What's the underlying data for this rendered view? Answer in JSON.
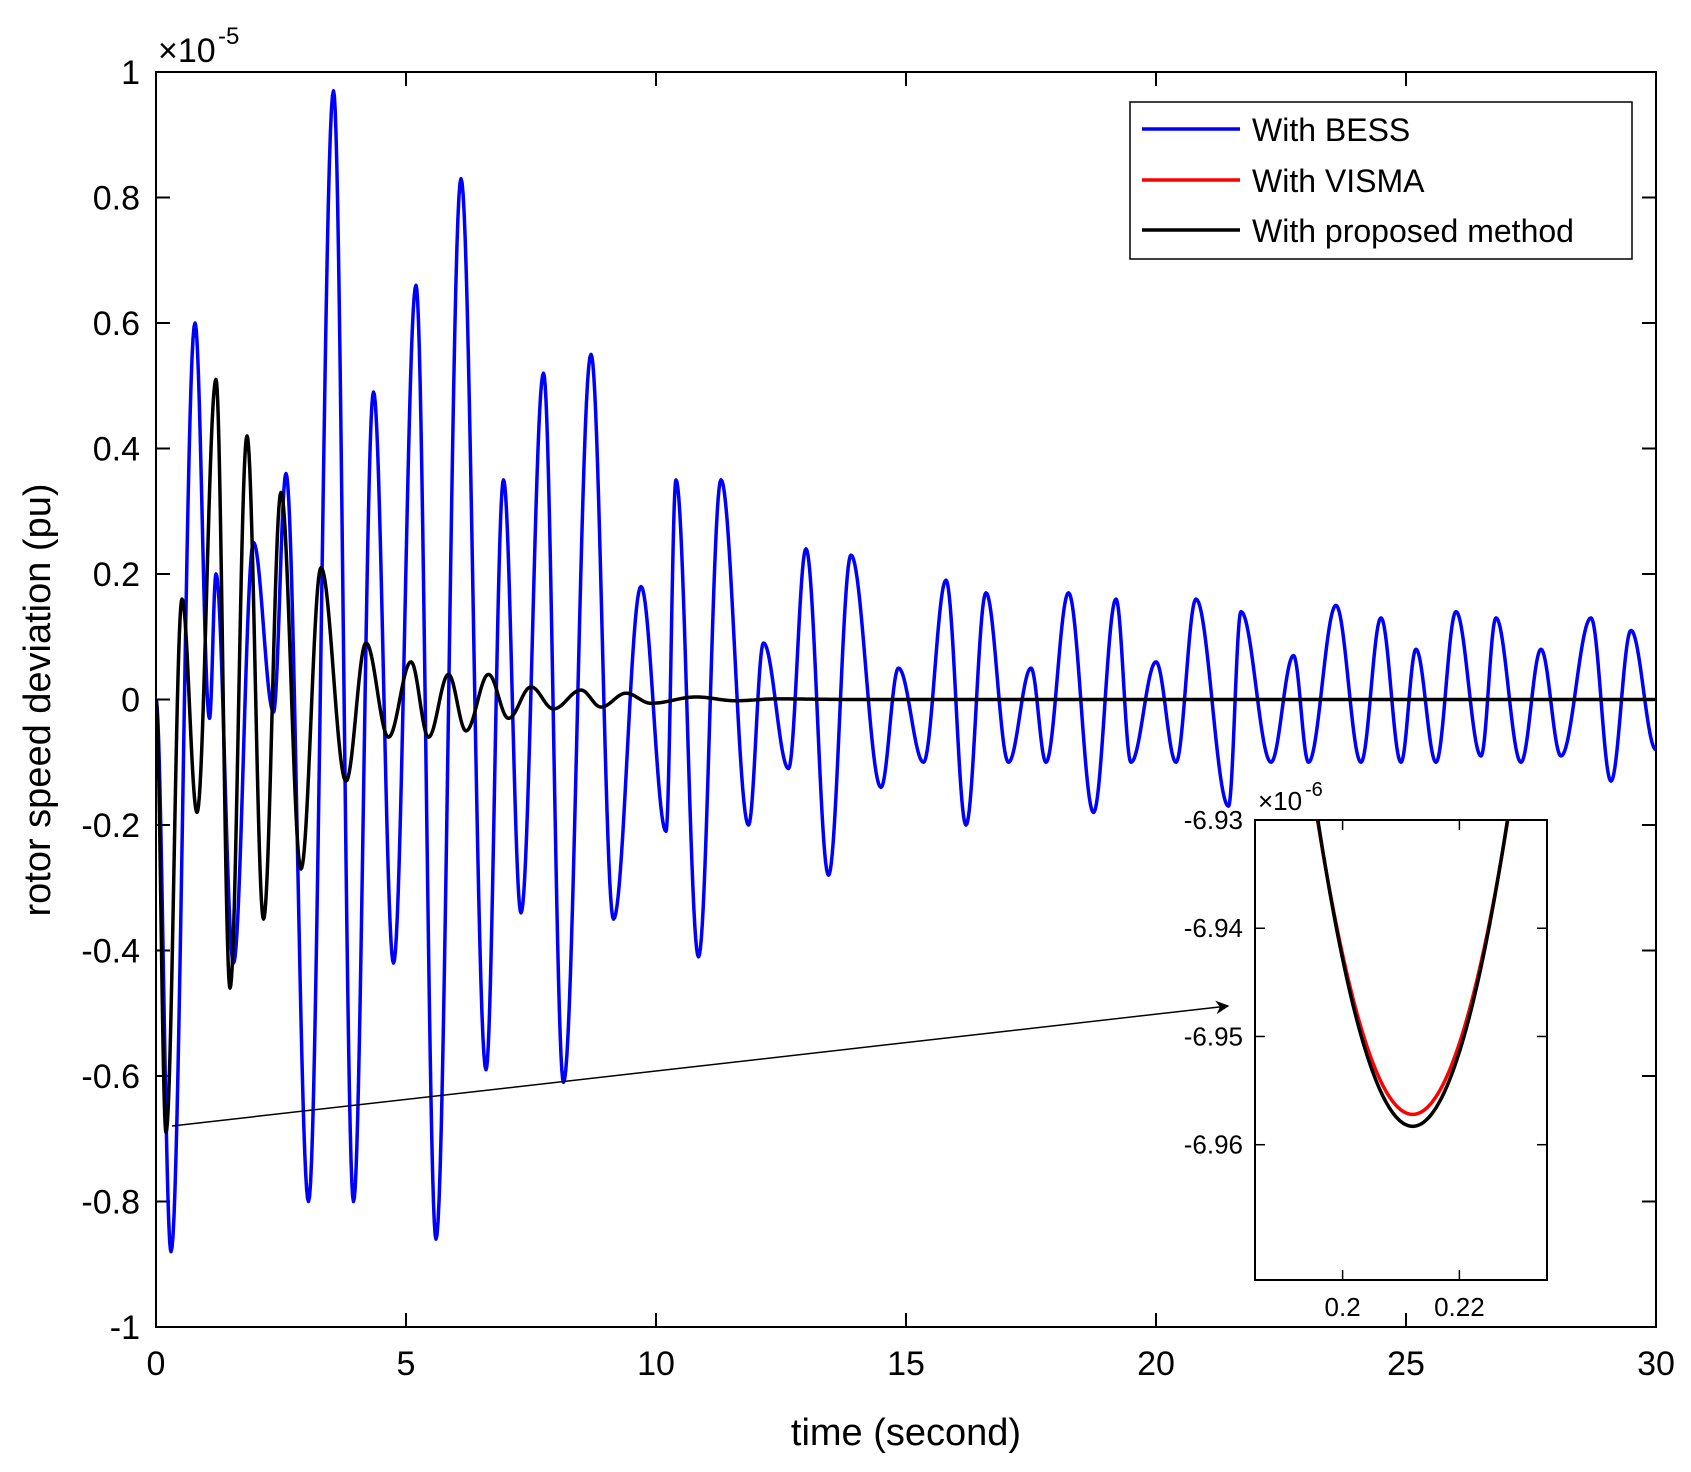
{
  "chart_data": [
    {
      "type": "line",
      "name": "main",
      "xlabel": "time (second)",
      "ylabel": "rotor speed deviation (pu)",
      "xlim": [
        0,
        30
      ],
      "ylim": [
        -1,
        1
      ],
      "y_multiplier": "×10",
      "y_multiplier_exp": "-5",
      "xticks": [
        0,
        5,
        10,
        15,
        20,
        25,
        30
      ],
      "xtick_labels": [
        "0",
        "5",
        "10",
        "15",
        "20",
        "25",
        "30"
      ],
      "yticks": [
        -1,
        -0.8,
        -0.6,
        -0.4,
        -0.2,
        0,
        0.2,
        0.4,
        0.6,
        0.8,
        1
      ],
      "ytick_labels": [
        "-1",
        "-0.8",
        "-0.6",
        "-0.4",
        "-0.2",
        "0",
        "0.2",
        "0.4",
        "0.6",
        "0.8",
        "1"
      ],
      "legend_position": "top-right",
      "series": [
        {
          "name": "With BESS",
          "color": "#0000ff",
          "extrema": [
            [
              0,
              0
            ],
            [
              0.3,
              -0.88
            ],
            [
              0.78,
              0.6
            ],
            [
              1.07,
              -0.03
            ],
            [
              1.2,
              0.2
            ],
            [
              1.55,
              -0.42
            ],
            [
              1.95,
              0.25
            ],
            [
              2.35,
              -0.02
            ],
            [
              2.6,
              0.36
            ],
            [
              3.05,
              -0.8
            ],
            [
              3.55,
              0.97
            ],
            [
              3.95,
              -0.8
            ],
            [
              4.35,
              0.49
            ],
            [
              4.75,
              -0.42
            ],
            [
              5.2,
              0.66
            ],
            [
              5.6,
              -0.86
            ],
            [
              6.1,
              0.83
            ],
            [
              6.6,
              -0.59
            ],
            [
              6.95,
              0.35
            ],
            [
              7.3,
              -0.34
            ],
            [
              7.75,
              0.52
            ],
            [
              8.15,
              -0.61
            ],
            [
              8.7,
              0.55
            ],
            [
              9.15,
              -0.35
            ],
            [
              9.7,
              0.18
            ],
            [
              10.2,
              -0.21
            ],
            [
              10.4,
              0.35
            ],
            [
              10.85,
              -0.41
            ],
            [
              11.3,
              0.35
            ],
            [
              11.85,
              -0.2
            ],
            [
              12.15,
              0.09
            ],
            [
              12.65,
              -0.11
            ],
            [
              13.0,
              0.24
            ],
            [
              13.45,
              -0.28
            ],
            [
              13.9,
              0.23
            ],
            [
              14.5,
              -0.14
            ],
            [
              14.85,
              0.05
            ],
            [
              15.35,
              -0.1
            ],
            [
              15.8,
              0.19
            ],
            [
              16.2,
              -0.2
            ],
            [
              16.6,
              0.17
            ],
            [
              17.05,
              -0.1
            ],
            [
              17.5,
              0.05
            ],
            [
              17.8,
              -0.1
            ],
            [
              18.25,
              0.17
            ],
            [
              18.75,
              -0.18
            ],
            [
              19.2,
              0.16
            ],
            [
              19.5,
              -0.1
            ],
            [
              20.0,
              0.06
            ],
            [
              20.4,
              -0.1
            ],
            [
              20.8,
              0.16
            ],
            [
              21.45,
              -0.17
            ],
            [
              21.7,
              0.14
            ],
            [
              22.3,
              -0.1
            ],
            [
              22.75,
              0.07
            ],
            [
              23.05,
              -0.1
            ],
            [
              23.6,
              0.15
            ],
            [
              24.1,
              -0.1
            ],
            [
              24.5,
              0.13
            ],
            [
              24.9,
              -0.1
            ],
            [
              25.2,
              0.08
            ],
            [
              25.6,
              -0.1
            ],
            [
              26.0,
              0.14
            ],
            [
              26.5,
              -0.09
            ],
            [
              26.8,
              0.13
            ],
            [
              27.3,
              -0.1
            ],
            [
              27.7,
              0.08
            ],
            [
              28.1,
              -0.09
            ],
            [
              28.7,
              0.13
            ],
            [
              29.1,
              -0.13
            ],
            [
              29.5,
              0.11
            ],
            [
              30.0,
              -0.08
            ]
          ]
        },
        {
          "name": "With VISMA",
          "color": "#ff0000",
          "extrema": []
        },
        {
          "name": "With proposed method",
          "color": "#000000",
          "extrema": [
            [
              0,
              0
            ],
            [
              0.2,
              -0.69
            ],
            [
              0.52,
              0.16
            ],
            [
              0.82,
              -0.18
            ],
            [
              1.2,
              0.51
            ],
            [
              1.48,
              -0.46
            ],
            [
              1.82,
              0.42
            ],
            [
              2.15,
              -0.35
            ],
            [
              2.5,
              0.33
            ],
            [
              2.9,
              -0.27
            ],
            [
              3.3,
              0.21
            ],
            [
              3.8,
              -0.13
            ],
            [
              4.2,
              0.09
            ],
            [
              4.65,
              -0.06
            ],
            [
              5.1,
              0.06
            ],
            [
              5.45,
              -0.06
            ],
            [
              5.85,
              0.04
            ],
            [
              6.2,
              -0.05
            ],
            [
              6.65,
              0.04
            ],
            [
              7.05,
              -0.03
            ],
            [
              7.5,
              0.02
            ],
            [
              7.95,
              -0.015
            ],
            [
              8.5,
              0.015
            ],
            [
              8.9,
              -0.012
            ],
            [
              9.4,
              0.01
            ],
            [
              9.9,
              -0.006
            ],
            [
              10.8,
              0.004
            ],
            [
              11.6,
              -0.002
            ],
            [
              12.4,
              0.001
            ],
            [
              14,
              0
            ],
            [
              30,
              0
            ]
          ]
        }
      ]
    },
    {
      "type": "line",
      "name": "inset",
      "xlim": [
        0.185,
        0.235
      ],
      "ylim": [
        -6.9725,
        -6.93
      ],
      "y_multiplier": "×10",
      "y_multiplier_exp": "-6",
      "xticks": [
        0.2,
        0.22
      ],
      "xtick_labels": [
        "0.2",
        "0.22"
      ],
      "yticks": [
        -6.96,
        -6.95,
        -6.94,
        -6.93
      ],
      "ytick_labels": [
        "-6.96",
        "-6.95",
        "-6.94",
        "-6.93"
      ],
      "series": [
        {
          "name": "With VISMA",
          "color": "#ff0000",
          "vertex": [
            0.212,
            -6.9572
          ],
          "curvature": 0.1025
        },
        {
          "name": "With proposed method",
          "color": "#000000",
          "vertex": [
            0.212,
            -6.9583
          ],
          "curvature": 0.1074
        }
      ]
    }
  ]
}
